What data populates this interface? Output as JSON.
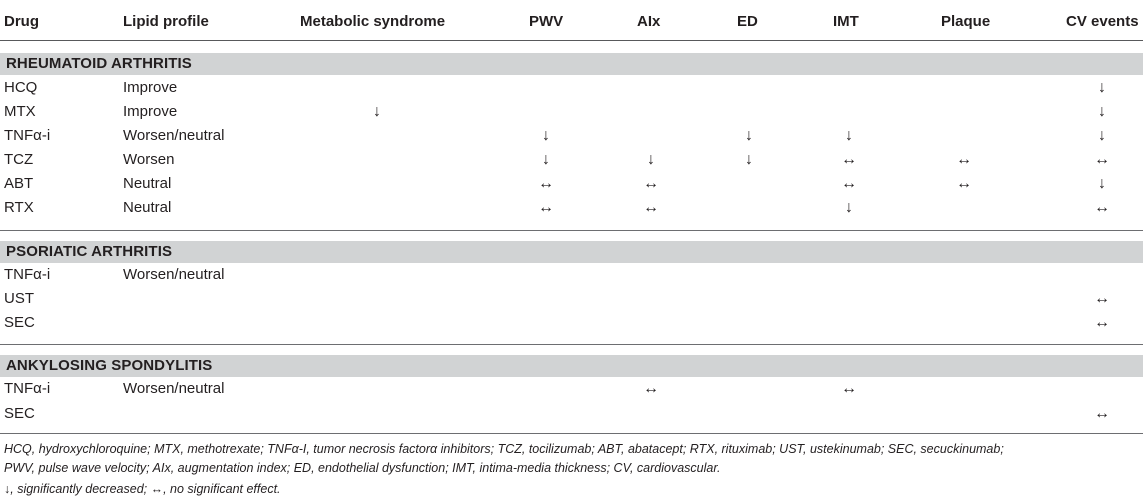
{
  "headers": {
    "drug": "Drug",
    "lipid": "Lipid profile",
    "metabolic": "Metabolic syndrome",
    "pwv": "PWV",
    "aix": "AIx",
    "ed": "ED",
    "imt": "IMT",
    "plaque": "Plaque",
    "cv": "CV events"
  },
  "sections": [
    {
      "title": "RHEUMATOID ARTHRITIS",
      "rows": [
        {
          "drug": "HCQ",
          "lipid": "Improve",
          "metabolic": "",
          "pwv": "",
          "aix": "",
          "ed": "",
          "imt": "",
          "plaque": "",
          "cv": "↓"
        },
        {
          "drug": "MTX",
          "lipid": "Improve",
          "metabolic": "↓",
          "pwv": "",
          "aix": "",
          "ed": "",
          "imt": "",
          "plaque": "",
          "cv": "↓"
        },
        {
          "drug": "TNFα-i",
          "lipid": "Worsen/neutral",
          "metabolic": "",
          "pwv": "↓",
          "aix": "",
          "ed": "↓",
          "imt": "↓",
          "plaque": "",
          "cv": "↓"
        },
        {
          "drug": "TCZ",
          "lipid": "Worsen",
          "metabolic": "",
          "pwv": "↓",
          "aix": "↓",
          "ed": "↓",
          "imt": "↔",
          "plaque": "↔",
          "cv": "↔"
        },
        {
          "drug": "ABT",
          "lipid": "Neutral",
          "metabolic": "",
          "pwv": "↔",
          "aix": "↔",
          "ed": "",
          "imt": "↔",
          "plaque": "↔",
          "cv": "↓"
        },
        {
          "drug": "RTX",
          "lipid": "Neutral",
          "metabolic": "",
          "pwv": "↔",
          "aix": "↔",
          "ed": "",
          "imt": "↓",
          "plaque": "",
          "cv": "↔"
        }
      ]
    },
    {
      "title": "PSORIATIC ARTHRITIS",
      "rows": [
        {
          "drug": "TNFα-i",
          "lipid": "Worsen/neutral",
          "metabolic": "",
          "pwv": "",
          "aix": "",
          "ed": "",
          "imt": "",
          "plaque": "",
          "cv": ""
        },
        {
          "drug": "UST",
          "lipid": "",
          "metabolic": "",
          "pwv": "",
          "aix": "",
          "ed": "",
          "imt": "",
          "plaque": "",
          "cv": "↔"
        },
        {
          "drug": "SEC",
          "lipid": "",
          "metabolic": "",
          "pwv": "",
          "aix": "",
          "ed": "",
          "imt": "",
          "plaque": "",
          "cv": "↔"
        }
      ]
    },
    {
      "title": "ANKYLOSING SPONDYLITIS",
      "rows": [
        {
          "drug": "TNFα-i",
          "lipid": "Worsen/neutral",
          "metabolic": "",
          "pwv": "",
          "aix": "↔",
          "ed": "",
          "imt": "↔",
          "plaque": "",
          "cv": ""
        },
        {
          "drug": "SEC",
          "lipid": "",
          "metabolic": "",
          "pwv": "",
          "aix": "",
          "ed": "",
          "imt": "",
          "plaque": "",
          "cv": "↔"
        }
      ]
    }
  ],
  "footnotes": {
    "line1": "HCQ, hydroxychloroquine; MTX, methotrexate; TNFα-I, tumor necrosis factorα inhibitors; TCZ, tocilizumab; ABT, abatacept; RTX, rituximab; UST, ustekinumab; SEC, secuckinumab;",
    "line2": "PWV, pulse wave velocity; AIx, augmentation index; ED, endothelial dysfunction; IMT, intima-media thickness; CV, cardiovascular.",
    "line3": "↓, significantly decreased; ↔, no significant effect."
  }
}
